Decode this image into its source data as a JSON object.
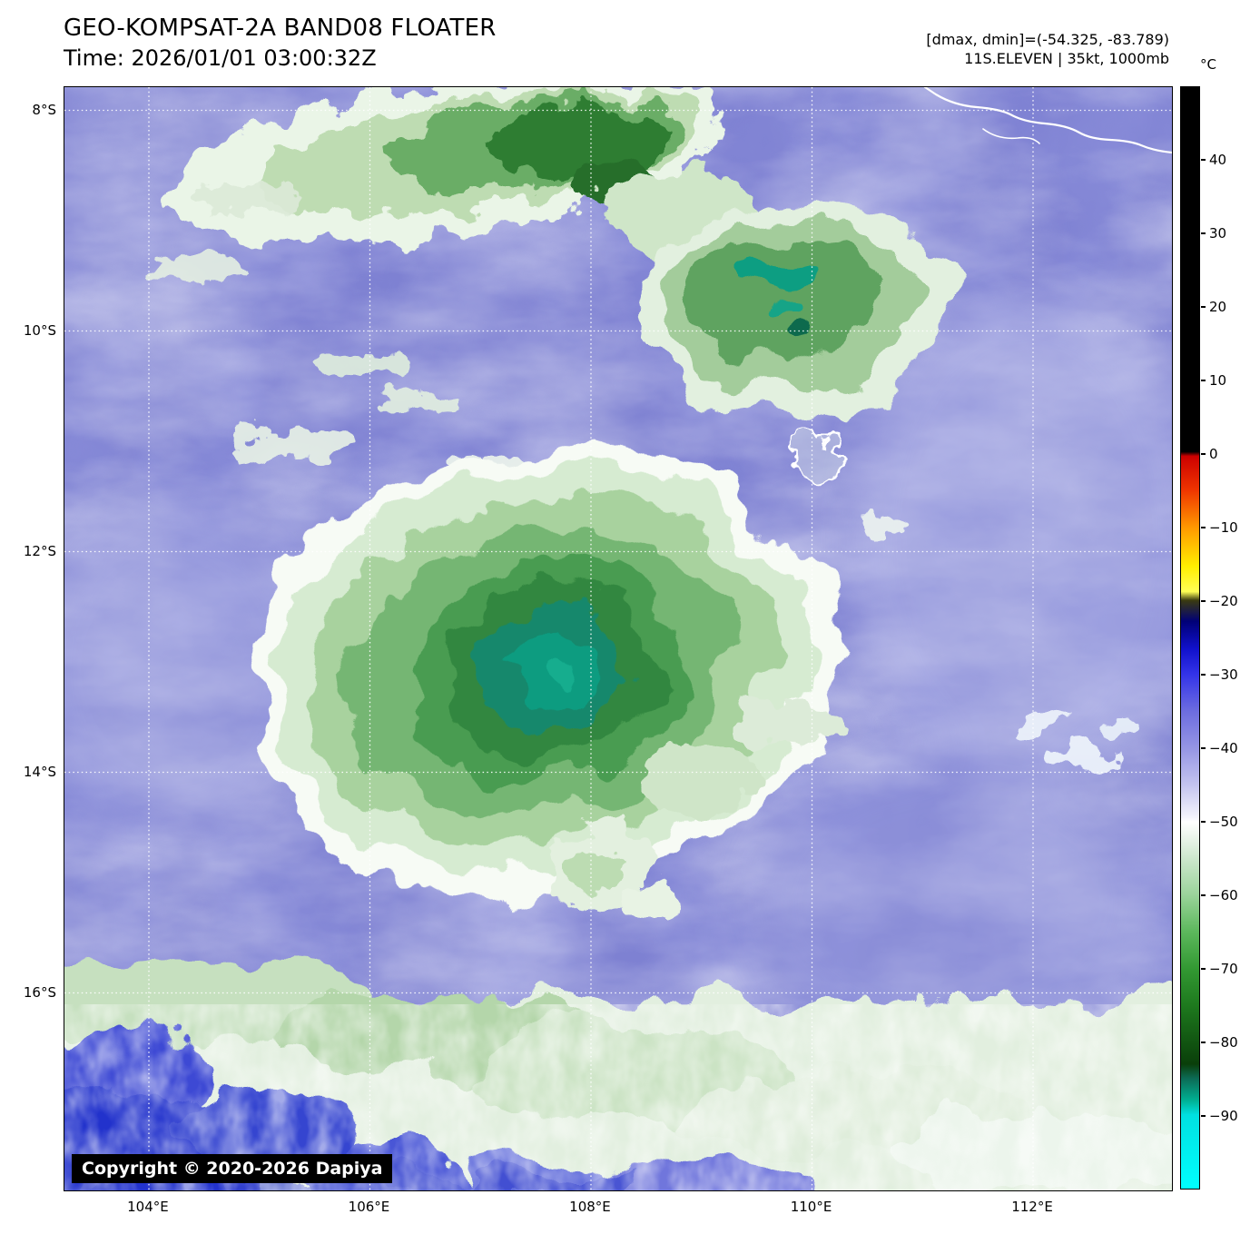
{
  "header": {
    "title": "GEO-KOMPSAT-2A BAND08 FLOATER",
    "time": "Time: 2026/01/01 03:00:32Z",
    "dmax_dmin": "[dmax, dmin]=(-54.325, -83.789)",
    "storm": "11S.ELEVEN | 35kt, 1000mb"
  },
  "axes": {
    "lat": [
      "8°S",
      "10°S",
      "12°S",
      "14°S",
      "16°S"
    ],
    "lon": [
      "104°E",
      "106°E",
      "108°E",
      "110°E",
      "112°E"
    ]
  },
  "colorbar": {
    "unit": "°C",
    "ticks": [
      "40",
      "30",
      "20",
      "10",
      "0",
      "−10",
      "−20",
      "−30",
      "−40",
      "−50",
      "−60",
      "−70",
      "−80",
      "−90"
    ],
    "stops": [
      {
        "p": 0,
        "c": "#000000"
      },
      {
        "p": 33.1,
        "c": "#000000"
      },
      {
        "p": 33.5,
        "c": "#cc0000"
      },
      {
        "p": 36.5,
        "c": "#ee3300"
      },
      {
        "p": 40,
        "c": "#ff9900"
      },
      {
        "p": 43.5,
        "c": "#ffee00"
      },
      {
        "p": 45.8,
        "c": "#ffff55"
      },
      {
        "p": 46.6,
        "c": "#3a3a10"
      },
      {
        "p": 48.5,
        "c": "#000077"
      },
      {
        "p": 51,
        "c": "#1111cc"
      },
      {
        "p": 53.3,
        "c": "#3333e8"
      },
      {
        "p": 56.7,
        "c": "#6d6de0"
      },
      {
        "p": 60,
        "c": "#9595e4"
      },
      {
        "p": 63.3,
        "c": "#c3c3ef"
      },
      {
        "p": 66.3,
        "c": "#f4f4fc"
      },
      {
        "p": 66.7,
        "c": "#ffffff"
      },
      {
        "p": 68,
        "c": "#ecf5ec"
      },
      {
        "p": 70,
        "c": "#cde7cd"
      },
      {
        "p": 73.3,
        "c": "#9bd49b"
      },
      {
        "p": 76.7,
        "c": "#5cb85c"
      },
      {
        "p": 80,
        "c": "#339933"
      },
      {
        "p": 83.3,
        "c": "#1e7a1e"
      },
      {
        "p": 86.7,
        "c": "#115511"
      },
      {
        "p": 88.7,
        "c": "#0a3f0a"
      },
      {
        "p": 90,
        "c": "#0c6b55"
      },
      {
        "p": 92,
        "c": "#00b093"
      },
      {
        "p": 93.3,
        "c": "#00e0e0"
      },
      {
        "p": 100,
        "c": "#00ffff"
      }
    ]
  },
  "map": {
    "copyright": "Copyright © 2020-2026 Dapiya"
  }
}
